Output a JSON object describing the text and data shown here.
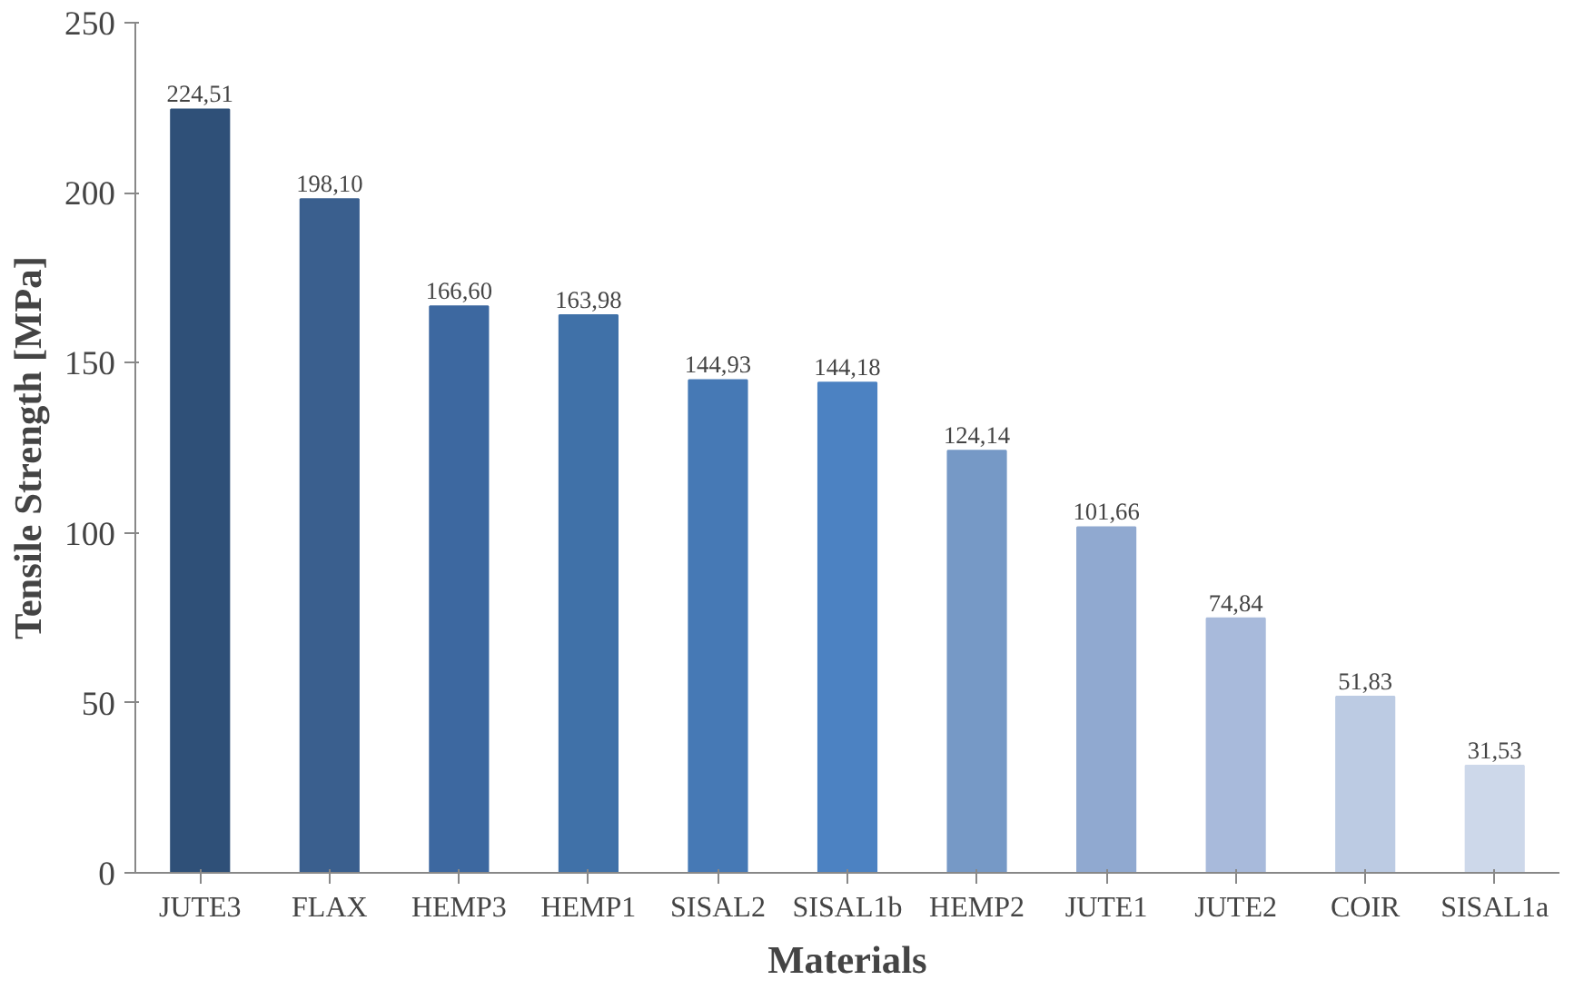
{
  "chart_data": {
    "type": "bar",
    "xlabel": "Materials",
    "ylabel": "Tensile Strength [MPa]",
    "categories": [
      "JUTE3",
      "FLAX",
      "HEMP3",
      "HEMP1",
      "SISAL2",
      "SISAL1b",
      "HEMP2",
      "JUTE1",
      "JUTE2",
      "COIR",
      "SISAL1a"
    ],
    "values": [
      224.51,
      198.1,
      166.6,
      163.98,
      144.93,
      144.18,
      124.14,
      101.66,
      74.84,
      51.83,
      31.53
    ],
    "value_labels": [
      "224,51",
      "198,10",
      "166,60",
      "163,98",
      "144,93",
      "144,18",
      "124,14",
      "101,66",
      "74,84",
      "51,83",
      "31,53"
    ],
    "colors": [
      "#2f5078",
      "#3a5f8e",
      "#3d68a0",
      "#4071a8",
      "#4679b5",
      "#4c82c2",
      "#7699c6",
      "#90a9d0",
      "#a8badb",
      "#bccbe3",
      "#cdd8ea"
    ],
    "ylim": [
      0,
      250
    ],
    "yticks": [
      0,
      50,
      100,
      150,
      200,
      250
    ],
    "grid": false
  }
}
